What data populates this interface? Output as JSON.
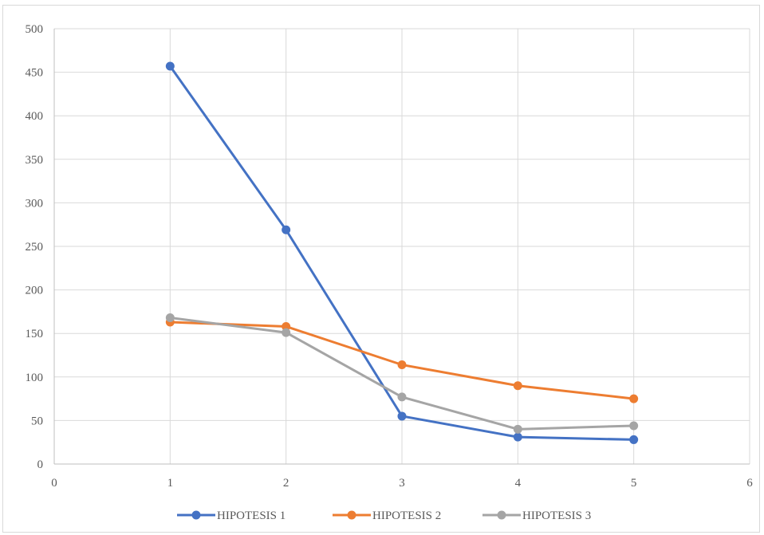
{
  "chart_data": {
    "type": "scatter",
    "mode": "lines+markers",
    "xlim": [
      0,
      6
    ],
    "ylim": [
      0,
      500
    ],
    "x_ticks": [
      0,
      1,
      2,
      3,
      4,
      5,
      6
    ],
    "y_ticks": [
      0,
      50,
      100,
      150,
      200,
      250,
      300,
      350,
      400,
      450,
      500
    ],
    "grid": true,
    "legend_position": "bottom",
    "series": [
      {
        "name": "HIPOTESIS 1",
        "color": "#4472c4",
        "x": [
          1,
          2,
          3,
          4,
          5
        ],
        "y": [
          457,
          269,
          55,
          31,
          28
        ]
      },
      {
        "name": "HIPOTESIS 2",
        "color": "#ed7d31",
        "x": [
          1,
          2,
          3,
          4,
          5
        ],
        "y": [
          163,
          158,
          114,
          90,
          75
        ]
      },
      {
        "name": "HIPOTESIS 3",
        "color": "#a5a5a5",
        "x": [
          1,
          2,
          3,
          4,
          5
        ],
        "y": [
          168,
          151,
          77,
          40,
          44
        ]
      }
    ]
  }
}
